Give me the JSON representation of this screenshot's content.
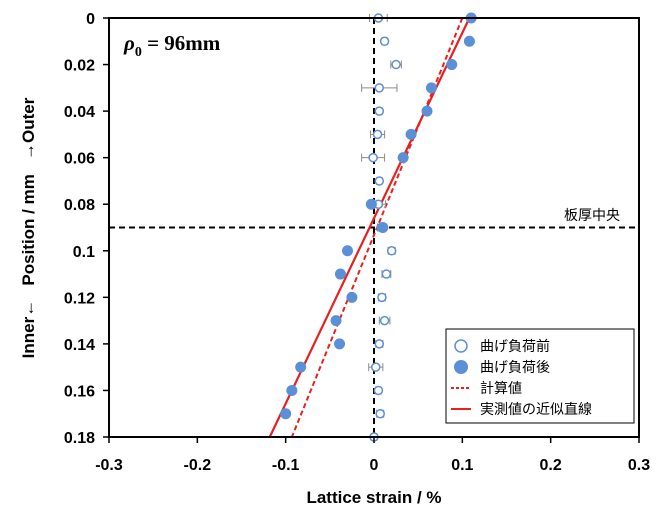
{
  "chart_data": {
    "type": "scatter",
    "title": "",
    "annotation_formula": {
      "symbol": "ρ",
      "subscript": "0",
      "text": " = 96mm"
    },
    "annotation_midplane": "板厚中央",
    "xlabel": "Lattice strain / %",
    "ylabel": "Inner←   Position / mm   →Outer",
    "xlim": [
      -0.3,
      0.3
    ],
    "ylim": [
      0.18,
      0
    ],
    "y_reversed": true,
    "xticks": [
      "-0.3",
      "-0.2",
      "-0.1",
      "0",
      "0.1",
      "0.2",
      "0.3"
    ],
    "yticks": [
      "0",
      "0.02",
      "0.04",
      "0.06",
      "0.08",
      "0.1",
      "0.12",
      "0.14",
      "0.16",
      "0.18"
    ],
    "xtick_values": [
      -0.3,
      -0.2,
      -0.1,
      0,
      0.1,
      0.2,
      0.3
    ],
    "ytick_values": [
      0,
      0.02,
      0.04,
      0.06,
      0.08,
      0.1,
      0.12,
      0.14,
      0.16,
      0.18
    ],
    "reference_lines": {
      "x": 0,
      "y": 0.09
    },
    "legend_position": "bottom-right",
    "series": [
      {
        "name": "曲げ負荷前",
        "kind": "scatter-open",
        "color": "#5b8fd6",
        "points": [
          {
            "x": 0.005,
            "y": 0.0,
            "err": 0.01
          },
          {
            "x": 0.012,
            "y": 0.01,
            "err": 0.003
          },
          {
            "x": 0.025,
            "y": 0.02,
            "err": 0.006
          },
          {
            "x": 0.006,
            "y": 0.03,
            "err": 0.02
          },
          {
            "x": 0.006,
            "y": 0.04,
            "err": 0.003
          },
          {
            "x": 0.004,
            "y": 0.05,
            "err": 0.008
          },
          {
            "x": -0.001,
            "y": 0.06,
            "err": 0.013
          },
          {
            "x": 0.006,
            "y": 0.07,
            "err": 0.003
          },
          {
            "x": 0.005,
            "y": 0.08,
            "err": 0.008
          },
          {
            "x": 0.008,
            "y": 0.09,
            "err": 0.004
          },
          {
            "x": 0.02,
            "y": 0.1,
            "err": 0.004
          },
          {
            "x": 0.014,
            "y": 0.11,
            "err": 0.005
          },
          {
            "x": 0.009,
            "y": 0.12,
            "err": 0.004
          },
          {
            "x": 0.012,
            "y": 0.13,
            "err": 0.006
          },
          {
            "x": 0.006,
            "y": 0.14,
            "err": 0.004
          },
          {
            "x": 0.002,
            "y": 0.15,
            "err": 0.008
          },
          {
            "x": 0.005,
            "y": 0.16,
            "err": 0.003
          },
          {
            "x": 0.007,
            "y": 0.17,
            "err": 0.004
          },
          {
            "x": 0.0,
            "y": 0.18,
            "err": 0.003
          }
        ]
      },
      {
        "name": "曲げ負荷後",
        "kind": "scatter-filled",
        "color": "#5b8fd6",
        "points": [
          {
            "x": 0.11,
            "y": 0.0
          },
          {
            "x": 0.108,
            "y": 0.01
          },
          {
            "x": 0.088,
            "y": 0.02
          },
          {
            "x": 0.065,
            "y": 0.03
          },
          {
            "x": 0.06,
            "y": 0.04
          },
          {
            "x": 0.042,
            "y": 0.05
          },
          {
            "x": 0.033,
            "y": 0.06
          },
          {
            "x": -0.003,
            "y": 0.08
          },
          {
            "x": 0.01,
            "y": 0.09
          },
          {
            "x": -0.03,
            "y": 0.1
          },
          {
            "x": -0.038,
            "y": 0.11
          },
          {
            "x": -0.025,
            "y": 0.12
          },
          {
            "x": -0.043,
            "y": 0.13
          },
          {
            "x": -0.039,
            "y": 0.14
          },
          {
            "x": -0.083,
            "y": 0.15
          },
          {
            "x": -0.093,
            "y": 0.16
          },
          {
            "x": -0.1,
            "y": 0.17
          }
        ]
      },
      {
        "name": "計算値",
        "kind": "line-dashed",
        "color": "#e82020",
        "points": [
          {
            "x": 0.1,
            "y": 0.0
          },
          {
            "x": -0.093,
            "y": 0.18
          }
        ]
      },
      {
        "name": "実測値の近似直線",
        "kind": "line-solid",
        "color": "#e82020",
        "points": [
          {
            "x": 0.108,
            "y": 0.0
          },
          {
            "x": -0.118,
            "y": 0.18
          }
        ]
      }
    ]
  }
}
